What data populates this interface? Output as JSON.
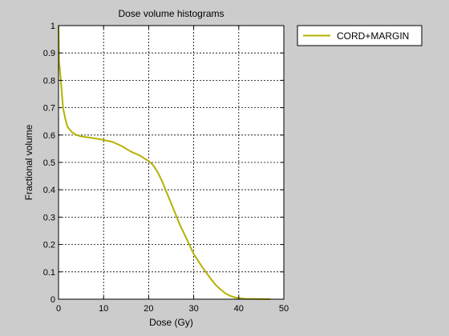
{
  "chart_data": {
    "type": "line",
    "title": "Dose volume histograms",
    "xlabel": "Dose (Gy)",
    "ylabel": "Fractional volume",
    "xlim": [
      0,
      50
    ],
    "ylim": [
      0,
      1
    ],
    "xticks": [
      "0",
      "10",
      "20",
      "30",
      "40",
      "50"
    ],
    "yticks": [
      "0",
      "0.1",
      "0.2",
      "0.3",
      "0.4",
      "0.5",
      "0.6",
      "0.7",
      "0.8",
      "0.9",
      "1"
    ],
    "grid": true,
    "legend_position": "outside-top-right",
    "series": [
      {
        "name": "CORD+MARGIN",
        "color": "#b5b100",
        "x": [
          0,
          0.1,
          0.3,
          0.6,
          1.0,
          1.5,
          2.0,
          3.0,
          4.0,
          5.0,
          6.0,
          8.0,
          10.0,
          12.0,
          14.0,
          16.0,
          18.0,
          20.0,
          21.0,
          22.0,
          23.0,
          24.0,
          25.0,
          26.0,
          27.0,
          28.0,
          29.0,
          30.0,
          32.0,
          34.0,
          35.0,
          36.0,
          37.0,
          38.0,
          39.0,
          40.0,
          41.0,
          42.0,
          44.0,
          46.0,
          47.0
        ],
        "y": [
          1.0,
          0.87,
          0.84,
          0.78,
          0.7,
          0.66,
          0.63,
          0.61,
          0.6,
          0.595,
          0.593,
          0.588,
          0.582,
          0.575,
          0.56,
          0.54,
          0.525,
          0.505,
          0.49,
          0.465,
          0.43,
          0.39,
          0.35,
          0.31,
          0.27,
          0.235,
          0.2,
          0.165,
          0.115,
          0.07,
          0.05,
          0.035,
          0.022,
          0.013,
          0.007,
          0.004,
          0.002,
          0.001,
          0.0005,
          0.0002,
          0.0
        ]
      }
    ]
  }
}
